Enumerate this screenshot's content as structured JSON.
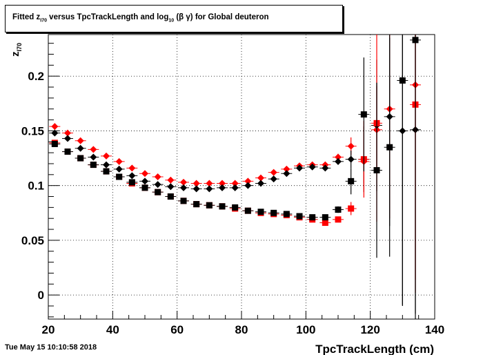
{
  "title": {
    "pre": "Fitted  z",
    "sub1": "I70",
    "mid": "  versus TpcTrackLength and log",
    "sub2": "10",
    "post": " (β γ) for Global deuteron"
  },
  "footer": {
    "timestamp": "Tue May 15 10:10:58 2018"
  },
  "chart_data": {
    "type": "scatter",
    "title": "Fitted z_I70 versus TpcTrackLength and log10 (β γ) for Global deuteron",
    "xlabel": "TpcTrackLength (cm)",
    "ylabel_main": "z",
    "ylabel_sub": "I70",
    "xlim": [
      20,
      140
    ],
    "ylim": [
      -0.022,
      0.238
    ],
    "xticks": [
      20,
      40,
      60,
      80,
      100,
      120,
      140
    ],
    "yticks": [
      0,
      0.05,
      0.1,
      0.15,
      0.2
    ],
    "ytick_labels": [
      "0",
      "0.05",
      "0.1",
      "0.15",
      "0.2"
    ],
    "grid": true,
    "series": [
      {
        "marker": "diamond",
        "color": "#ff0000",
        "x": [
          22,
          26,
          30,
          34,
          38,
          42,
          46,
          50,
          54,
          58,
          62,
          66,
          70,
          74,
          78,
          82,
          86,
          90,
          94,
          98,
          102,
          106,
          110,
          114,
          118,
          122,
          126,
          130,
          134
        ],
        "y": [
          0.154,
          0.148,
          0.141,
          0.133,
          0.127,
          0.122,
          0.116,
          0.111,
          0.108,
          0.105,
          0.103,
          0.102,
          0.102,
          0.102,
          0.102,
          0.104,
          0.107,
          0.112,
          0.115,
          0.118,
          0.119,
          0.119,
          0.126,
          0.136,
          0.122,
          0.151,
          0.17,
          null,
          0.192
        ],
        "err": [
          0.0015,
          0.0015,
          0.0015,
          0.0015,
          0.0015,
          0.0015,
          0.0015,
          0.0015,
          0.0015,
          0.0015,
          0.0015,
          0.0015,
          0.0015,
          0.0015,
          0.0015,
          0.0015,
          0.0015,
          0.0015,
          0.0015,
          0.0015,
          0.0015,
          0.0015,
          0.003,
          0.008,
          0.02,
          0.04,
          0.1,
          0,
          0.19
        ]
      },
      {
        "marker": "diamond",
        "color": "#000000",
        "x": [
          22,
          26,
          30,
          34,
          38,
          42,
          46,
          50,
          54,
          58,
          62,
          66,
          70,
          74,
          78,
          82,
          86,
          90,
          94,
          98,
          102,
          106,
          110,
          114,
          118,
          122,
          126,
          130,
          134
        ],
        "y": [
          0.148,
          0.143,
          0.134,
          0.126,
          0.119,
          0.115,
          0.109,
          0.104,
          0.101,
          0.099,
          0.098,
          0.097,
          0.097,
          0.098,
          0.098,
          0.1,
          0.102,
          0.106,
          0.111,
          0.116,
          0.117,
          0.116,
          0.122,
          0.124,
          0.124,
          0.155,
          0.163,
          0.15,
          0.151
        ],
        "err": [
          0.0015,
          0.0015,
          0.0015,
          0.0015,
          0.0015,
          0.0015,
          0.0015,
          0.0015,
          0.0015,
          0.0015,
          0.0015,
          0.0015,
          0.0015,
          0.0015,
          0.0015,
          0.0015,
          0.0015,
          0.0015,
          0.0015,
          0.0015,
          0.0015,
          0.0015,
          0.003,
          0.008,
          0.03,
          0.06,
          0.1,
          0.16,
          0.2
        ]
      },
      {
        "marker": "square",
        "color": "#ff0000",
        "x": [
          22,
          26,
          30,
          34,
          38,
          42,
          46,
          50,
          54,
          58,
          62,
          66,
          70,
          74,
          78,
          82,
          86,
          90,
          94,
          98,
          102,
          106,
          110,
          114,
          118,
          122,
          126,
          130,
          134
        ],
        "y": [
          0.139,
          0.131,
          0.125,
          0.119,
          0.113,
          0.108,
          0.102,
          0.098,
          0.094,
          0.09,
          0.086,
          0.083,
          0.082,
          0.081,
          0.079,
          0.077,
          0.075,
          0.074,
          0.073,
          0.071,
          0.069,
          0.066,
          0.069,
          0.079,
          0.124,
          0.157,
          null,
          null,
          0.174
        ],
        "err": [
          0.0015,
          0.0015,
          0.0015,
          0.0015,
          0.0015,
          0.0015,
          0.0015,
          0.0015,
          0.0015,
          0.0015,
          0.0015,
          0.0015,
          0.0015,
          0.0015,
          0.0015,
          0.0015,
          0.0015,
          0.0015,
          0.0015,
          0.0015,
          0.0015,
          0.0015,
          0.002,
          0.006,
          0.035,
          0.09,
          0,
          0,
          0.16
        ]
      },
      {
        "marker": "square",
        "color": "#000000",
        "x": [
          22,
          26,
          30,
          34,
          38,
          42,
          46,
          50,
          54,
          58,
          62,
          66,
          70,
          74,
          78,
          82,
          86,
          90,
          94,
          98,
          102,
          106,
          110,
          114,
          118,
          122,
          126,
          130,
          134
        ],
        "y": [
          0.138,
          0.131,
          0.125,
          0.119,
          0.113,
          0.108,
          0.103,
          0.098,
          0.094,
          0.09,
          0.086,
          0.083,
          0.082,
          0.081,
          0.08,
          0.077,
          0.076,
          0.075,
          0.074,
          0.072,
          0.071,
          0.071,
          0.078,
          0.104,
          0.165,
          0.114,
          0.135,
          0.196,
          0.233
        ],
        "err": [
          0.0015,
          0.0015,
          0.0015,
          0.0015,
          0.0015,
          0.0015,
          0.0015,
          0.0015,
          0.0015,
          0.0015,
          0.0015,
          0.0015,
          0.0015,
          0.0015,
          0.0015,
          0.0015,
          0.0015,
          0.0015,
          0.0015,
          0.0015,
          0.0015,
          0.0015,
          0.003,
          0.012,
          0.052,
          0.08,
          0.1,
          0.205,
          0.25
        ]
      }
    ]
  }
}
